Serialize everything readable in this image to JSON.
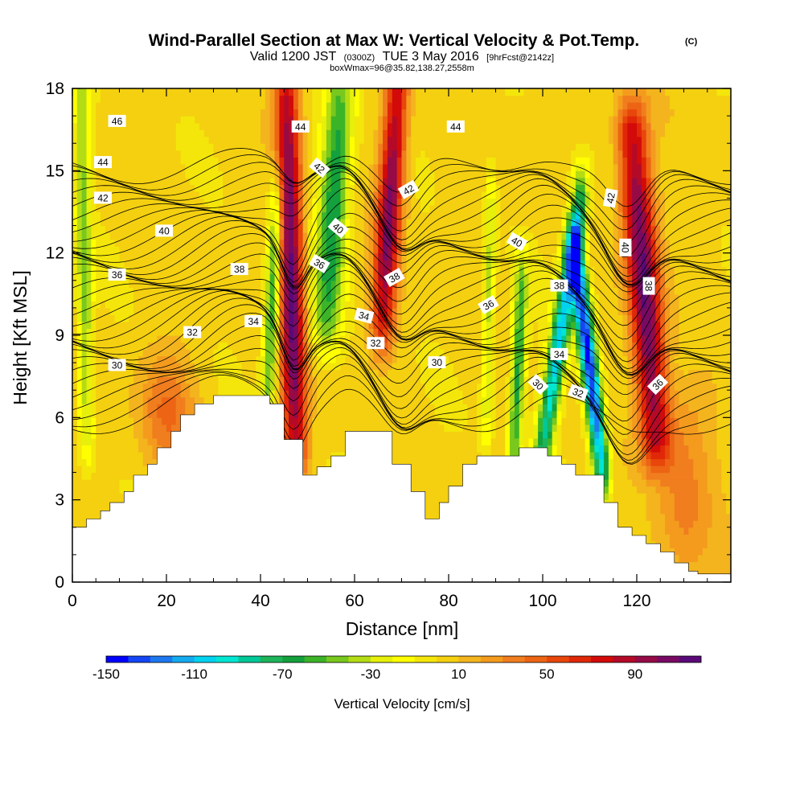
{
  "title": {
    "main": "Wind-Parallel Section at Max W: Vertical Velocity & Pot.Temp.",
    "copyright": "(C)",
    "valid_prefix": "Valid 1200 JST",
    "valid_utc": "(0300Z)",
    "valid_date": "TUE 3 May 2016",
    "forecast": "[9hrFcst@2142z]",
    "box_info": "boxWmax=96@35.82,138.27,2558m"
  },
  "colors": {
    "background": "#ffffff",
    "terrain": "#ffffff",
    "contour_line": "#000000",
    "plot_fill_default": "#f4d010"
  },
  "chart_data": {
    "type": "heatmap",
    "xlabel": "Distance [nm]",
    "ylabel": "Height [Kft MSL]",
    "xlim": [
      0,
      140
    ],
    "ylim": [
      0,
      18
    ],
    "x_ticks": [
      0,
      20,
      40,
      60,
      80,
      100,
      120
    ],
    "y_ticks": [
      0,
      3,
      6,
      9,
      12,
      15,
      18
    ],
    "x_tick_labels": [
      "0",
      "20",
      "40",
      "60",
      "80",
      "100",
      "120"
    ],
    "y_tick_labels": [
      "0",
      "3",
      "6",
      "9",
      "12",
      "15",
      "18"
    ],
    "colorbar": {
      "title": "Vertical Velocity [cm/s]",
      "levels": [
        -150,
        -140,
        -130,
        -120,
        -110,
        -100,
        -90,
        -80,
        -70,
        -60,
        -50,
        -40,
        -30,
        -20,
        -10,
        0,
        10,
        20,
        30,
        40,
        50,
        60,
        70,
        80,
        90,
        100,
        110,
        120
      ],
      "colors": [
        "#0000ff",
        "#1446f5",
        "#1e78f0",
        "#14aaf0",
        "#00d2f0",
        "#00e6d2",
        "#00c896",
        "#1eb45a",
        "#14a03c",
        "#3cb428",
        "#78c81e",
        "#b4dc14",
        "#e6f00a",
        "#ffff00",
        "#f4e60a",
        "#f4d010",
        "#f4b41e",
        "#f49b1e",
        "#f07d1e",
        "#ec6414",
        "#e8460a",
        "#e02808",
        "#d20a0a",
        "#b40a28",
        "#960a46",
        "#780a64",
        "#5a0a78"
      ],
      "tick_values": [
        -150,
        -110,
        -70,
        -30,
        10,
        50,
        90
      ],
      "tick_labels": [
        "-150",
        "-110",
        "-70",
        "-30",
        "10",
        "50",
        "90"
      ]
    },
    "terrain": [
      [
        0,
        2.0
      ],
      [
        3,
        2.0
      ],
      [
        3,
        2.3
      ],
      [
        6,
        2.3
      ],
      [
        6,
        2.6
      ],
      [
        8,
        2.6
      ],
      [
        8,
        2.9
      ],
      [
        11,
        2.9
      ],
      [
        11,
        3.3
      ],
      [
        13,
        3.3
      ],
      [
        13,
        3.9
      ],
      [
        16,
        3.9
      ],
      [
        16,
        4.3
      ],
      [
        18,
        4.3
      ],
      [
        18,
        4.9
      ],
      [
        21,
        4.9
      ],
      [
        21,
        5.5
      ],
      [
        23,
        5.5
      ],
      [
        23,
        6.1
      ],
      [
        26,
        6.1
      ],
      [
        26,
        6.5
      ],
      [
        30,
        6.5
      ],
      [
        30,
        6.8
      ],
      [
        42,
        6.8
      ],
      [
        42,
        6.5
      ],
      [
        45,
        6.5
      ],
      [
        45,
        5.2
      ],
      [
        49,
        5.2
      ],
      [
        49,
        3.9
      ],
      [
        52,
        3.9
      ],
      [
        52,
        4.2
      ],
      [
        55,
        4.2
      ],
      [
        55,
        4.6
      ],
      [
        58,
        4.6
      ],
      [
        58,
        5.5
      ],
      [
        68,
        5.5
      ],
      [
        68,
        4.3
      ],
      [
        72,
        4.3
      ],
      [
        72,
        3.3
      ],
      [
        75,
        3.3
      ],
      [
        75,
        2.3
      ],
      [
        78,
        2.3
      ],
      [
        78,
        2.9
      ],
      [
        80,
        2.9
      ],
      [
        80,
        3.5
      ],
      [
        83,
        3.5
      ],
      [
        83,
        4.3
      ],
      [
        86,
        4.3
      ],
      [
        86,
        4.6
      ],
      [
        95,
        4.6
      ],
      [
        95,
        4.9
      ],
      [
        101,
        4.9
      ],
      [
        101,
        4.6
      ],
      [
        104,
        4.6
      ],
      [
        104,
        4.3
      ],
      [
        107,
        4.3
      ],
      [
        107,
        3.9
      ],
      [
        113,
        3.9
      ],
      [
        113,
        2.9
      ],
      [
        116,
        2.9
      ],
      [
        116,
        2.0
      ],
      [
        119,
        2.0
      ],
      [
        119,
        1.7
      ],
      [
        122,
        1.7
      ],
      [
        122,
        1.4
      ],
      [
        125,
        1.4
      ],
      [
        125,
        1.1
      ],
      [
        128,
        1.1
      ],
      [
        128,
        0.7
      ],
      [
        131,
        0.7
      ],
      [
        131,
        0.4
      ],
      [
        133,
        0.4
      ],
      [
        133,
        0.3
      ],
      [
        140,
        0.3
      ]
    ],
    "vertical_velocity_features": [
      {
        "x_bottom": 47.5,
        "x_top": 45.5,
        "y_bottom": 4.8,
        "y_top": 18,
        "half_width": 2.6,
        "peak": 110
      },
      {
        "x_bottom": 66.0,
        "x_top": 69.0,
        "y_bottom": 9.5,
        "y_top": 18,
        "half_width": 2.6,
        "peak": 100
      },
      {
        "x_bottom": 124.0,
        "x_top": 119.0,
        "y_bottom": 5.3,
        "y_top": 16.5,
        "half_width": 3.4,
        "peak": 110
      },
      {
        "x_bottom": 54.0,
        "x_top": 57.0,
        "y_bottom": 9.5,
        "y_top": 18,
        "half_width": 3.2,
        "peak": -75
      },
      {
        "x_bottom": 41.5,
        "x_top": 43.5,
        "y_bottom": 6.5,
        "y_top": 14,
        "half_width": 1.6,
        "peak": -70
      },
      {
        "x_bottom": 100.0,
        "x_top": 108.0,
        "y_bottom": 4.8,
        "y_top": 14,
        "half_width": 2.0,
        "peak": -110
      },
      {
        "x_bottom": 112.5,
        "x_top": 107.0,
        "y_bottom": 4.2,
        "y_top": 12,
        "half_width": 1.9,
        "peak": -150
      },
      {
        "x_bottom": 94.0,
        "x_top": 95.5,
        "y_bottom": 4.6,
        "y_top": 11,
        "half_width": 1.5,
        "peak": -70
      },
      {
        "x_bottom": 3.0,
        "x_top": 2.0,
        "y_bottom": 5.5,
        "y_top": 18,
        "half_width": 1.6,
        "peak": -50
      },
      {
        "x_bottom": 88.0,
        "x_top": 89.0,
        "y_bottom": 6.0,
        "y_top": 14,
        "half_width": 1.2,
        "peak": -40
      },
      {
        "x_bottom": 20.0,
        "x_top": 20.0,
        "y_bottom": 5.0,
        "y_top": 7.5,
        "half_width": 6.0,
        "peak": 35
      },
      {
        "x_bottom": 130.0,
        "x_top": 130.0,
        "y_bottom": 1.0,
        "y_top": 6.0,
        "half_width": 6.0,
        "peak": 30
      }
    ],
    "pot_temp_labels": [
      {
        "label": "46",
        "x": 9.5,
        "y": 16.8,
        "angle": 0
      },
      {
        "label": "44",
        "x": 6.5,
        "y": 15.3,
        "angle": 0
      },
      {
        "label": "42",
        "x": 6.5,
        "y": 14.0,
        "angle": 0
      },
      {
        "label": "40",
        "x": 19.5,
        "y": 12.8,
        "angle": 0
      },
      {
        "label": "36",
        "x": 9.5,
        "y": 11.2,
        "angle": 0
      },
      {
        "label": "38",
        "x": 35.5,
        "y": 11.4,
        "angle": 0
      },
      {
        "label": "32",
        "x": 25.5,
        "y": 9.1,
        "angle": 0
      },
      {
        "label": "34",
        "x": 38.5,
        "y": 9.5,
        "angle": 0
      },
      {
        "label": "30",
        "x": 9.5,
        "y": 7.9,
        "angle": 0
      },
      {
        "label": "44",
        "x": 48.5,
        "y": 16.6,
        "angle": 0
      },
      {
        "label": "42",
        "x": 52.5,
        "y": 15.1,
        "angle": 40
      },
      {
        "label": "40",
        "x": 56.5,
        "y": 12.9,
        "angle": 40
      },
      {
        "label": "36",
        "x": 52.5,
        "y": 11.6,
        "angle": 30
      },
      {
        "label": "34",
        "x": 62.0,
        "y": 9.7,
        "angle": 15
      },
      {
        "label": "32",
        "x": 64.5,
        "y": 8.7,
        "angle": 0
      },
      {
        "label": "42",
        "x": 71.5,
        "y": 14.3,
        "angle": -30
      },
      {
        "label": "38",
        "x": 68.5,
        "y": 11.1,
        "angle": -30
      },
      {
        "label": "44",
        "x": 81.5,
        "y": 16.6,
        "angle": 0
      },
      {
        "label": "30",
        "x": 77.5,
        "y": 8.0,
        "angle": 0
      },
      {
        "label": "40",
        "x": 94.5,
        "y": 12.4,
        "angle": 30
      },
      {
        "label": "36",
        "x": 88.5,
        "y": 10.1,
        "angle": -30
      },
      {
        "label": "38",
        "x": 103.5,
        "y": 10.8,
        "angle": 0
      },
      {
        "label": "34",
        "x": 103.5,
        "y": 8.3,
        "angle": 0
      },
      {
        "label": "30",
        "x": 99.0,
        "y": 7.2,
        "angle": 45
      },
      {
        "label": "32",
        "x": 107.5,
        "y": 6.9,
        "angle": 20
      },
      {
        "label": "42",
        "x": 114.5,
        "y": 14.0,
        "angle": -80
      },
      {
        "label": "40",
        "x": 117.5,
        "y": 12.2,
        "angle": 90
      },
      {
        "label": "38",
        "x": 122.5,
        "y": 10.8,
        "angle": 90
      },
      {
        "label": "36",
        "x": 124.5,
        "y": 7.2,
        "angle": -45
      }
    ],
    "pot_temp_levels": [
      29,
      29.5,
      30,
      30.5,
      31,
      31.5,
      32,
      32.5,
      33,
      33.5,
      34,
      34.5,
      35,
      35.5,
      36,
      36.5,
      37,
      37.5,
      38,
      38.5,
      39,
      39.5,
      40,
      40.5,
      41,
      41.5,
      42,
      42.5,
      43,
      43.5,
      44,
      44.5,
      45,
      45.5,
      46,
      46.5
    ]
  }
}
